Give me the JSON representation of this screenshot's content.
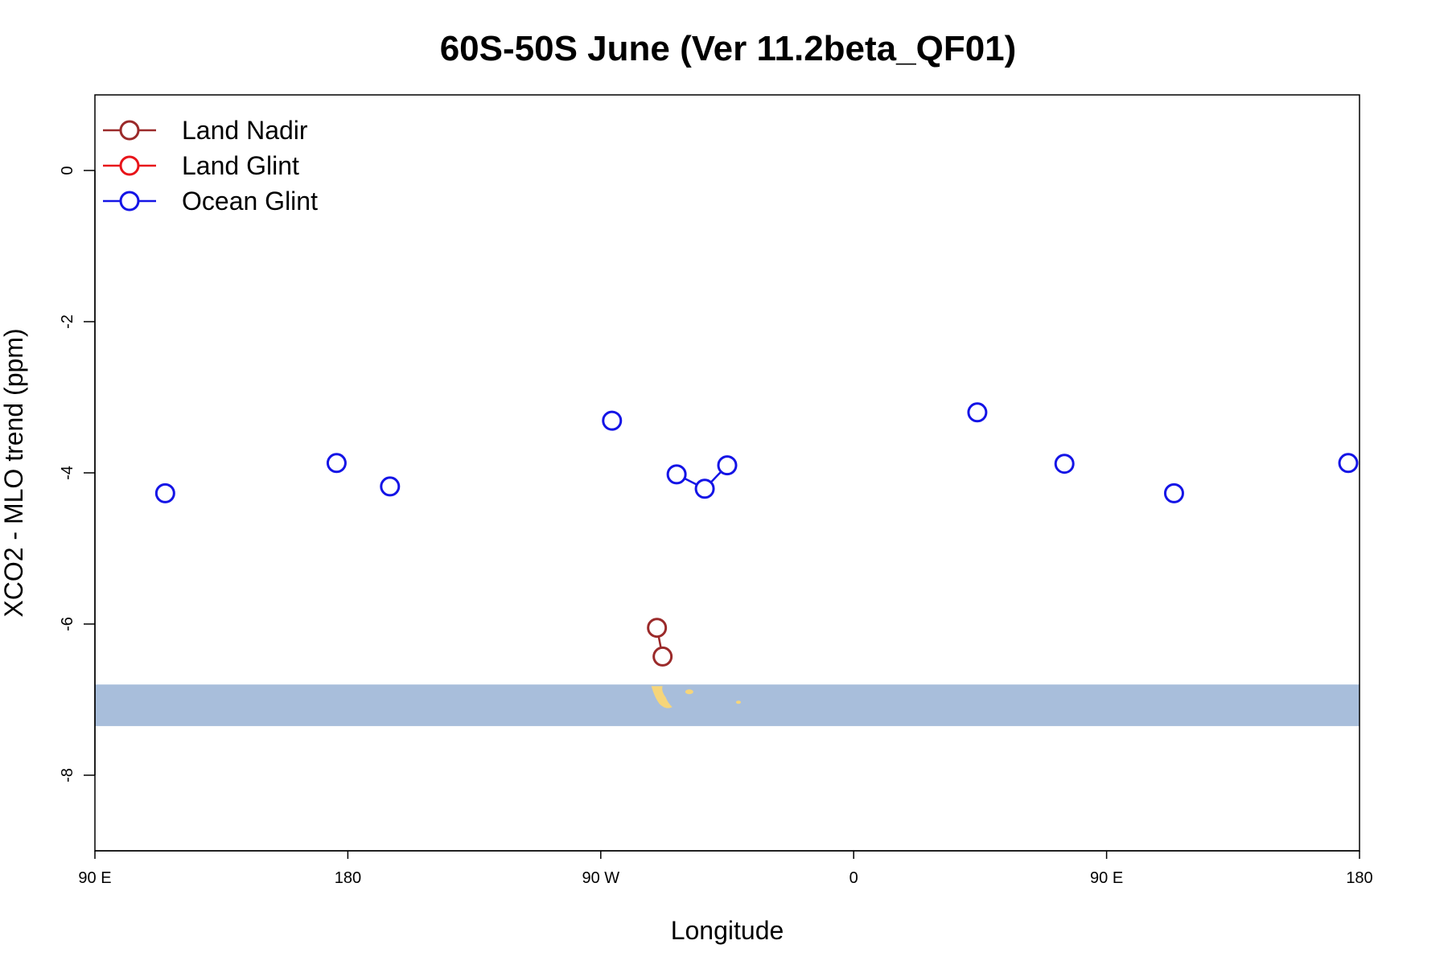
{
  "chart_data": {
    "type": "scatter",
    "title": "60S-50S June (Ver 11.2beta_QF01)",
    "xlabel": "Longitude",
    "ylabel": "XCO2 - MLO trend (ppm)",
    "xlim": [
      90,
      540
    ],
    "ylim": [
      -9.0,
      1.0
    ],
    "x_ticks": [
      {
        "value": 90,
        "label": "90 E"
      },
      {
        "value": 180,
        "label": "180"
      },
      {
        "value": 270,
        "label": "90 W"
      },
      {
        "value": 360,
        "label": "0"
      },
      {
        "value": 450,
        "label": "90 E"
      },
      {
        "value": 540,
        "label": "180"
      }
    ],
    "y_ticks": [
      {
        "value": 0,
        "label": "0"
      },
      {
        "value": -2,
        "label": "-2"
      },
      {
        "value": -4,
        "label": "-4"
      },
      {
        "value": -6,
        "label": "-6"
      },
      {
        "value": -8,
        "label": "-8"
      }
    ],
    "grid": false,
    "legend_position": "top-left",
    "map_band": {
      "y_top": -6.8,
      "y_bottom": -7.35,
      "ocean_color": "#a8bedb",
      "land_color": "#f6d57a"
    },
    "series": [
      {
        "name": "Land Nadir",
        "color": "#9b2a2a",
        "points": [
          [
            290,
            -6.05
          ],
          [
            292,
            -6.43
          ]
        ],
        "segments": [
          [
            0,
            1
          ]
        ]
      },
      {
        "name": "Land Glint",
        "color": "#e8141a",
        "points": [],
        "segments": []
      },
      {
        "name": "Ocean Glint",
        "color": "#1414e6",
        "points": [
          [
            115,
            -4.27
          ],
          [
            176,
            -3.87
          ],
          [
            195,
            -4.18
          ],
          [
            274,
            -3.31
          ],
          [
            297,
            -4.02
          ],
          [
            307,
            -4.21
          ],
          [
            315,
            -3.9
          ],
          [
            404,
            -3.2
          ],
          [
            435,
            -3.88
          ],
          [
            474,
            -4.27
          ],
          [
            536,
            -3.87
          ]
        ],
        "segments": [
          [
            4,
            5
          ],
          [
            5,
            6
          ]
        ]
      }
    ]
  }
}
